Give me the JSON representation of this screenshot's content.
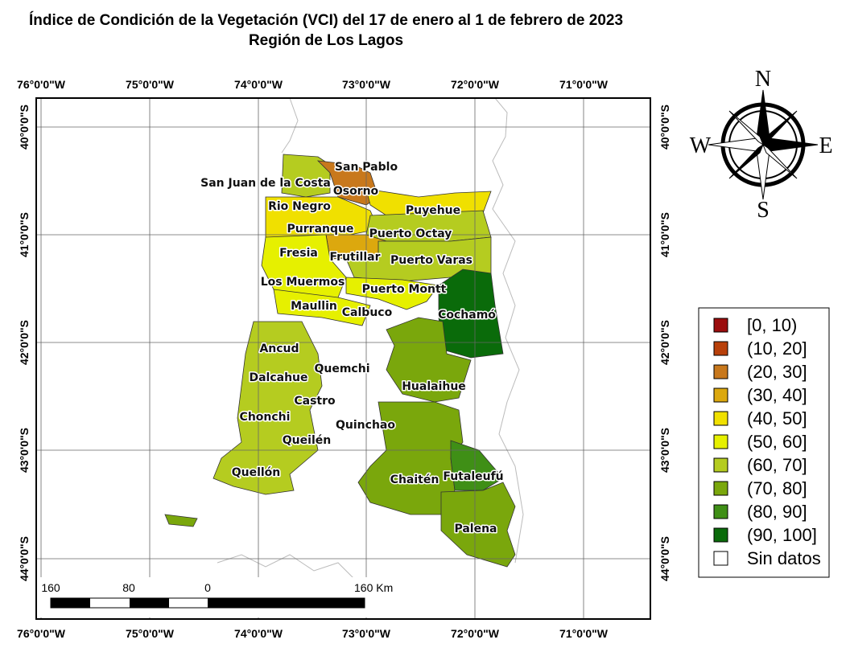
{
  "title": "Índice de Condición de la Vegetación (VCI) del 17 de enero al 1 de febrero de 2023",
  "subtitle": "Región de Los Lagos",
  "graticule": {
    "longitudes": [
      "76°0'0\"W",
      "75°0'0\"W",
      "74°0'0\"W",
      "73°0'0\"W",
      "72°0'0\"W",
      "71°0'0\"W"
    ],
    "latitudes": [
      "40°0'0\"S",
      "41°0'0\"S",
      "42°0'0\"S",
      "43°0'0\"S",
      "44°0'0\"S"
    ]
  },
  "communes": [
    "San Pablo",
    "San Juan de la Costa",
    "Osorno",
    "Rio Negro",
    "Puyehue",
    "Purranque",
    "Puerto Octay",
    "Fresia",
    "Frutillar",
    "Puerto Varas",
    "Los Muermos",
    "Puerto Montt",
    "Maullin",
    "Calbuco",
    "Cochamó",
    "Ancud",
    "Quemchi",
    "Dalcahue",
    "Hualaihue",
    "Castro",
    "Chonchi",
    "Quinchao",
    "Queilén",
    "Quellón",
    "Chaitén",
    "Futaleufú",
    "Palena"
  ],
  "legend": {
    "entries": [
      {
        "label": "[0, 10)",
        "color": "#9b0d0d"
      },
      {
        "label": "(10, 20]",
        "color": "#b8400a"
      },
      {
        "label": "(20, 30]",
        "color": "#c8781c"
      },
      {
        "label": "(30, 40]",
        "color": "#dca80e"
      },
      {
        "label": "(40, 50]",
        "color": "#f0e000"
      },
      {
        "label": "(50, 60]",
        "color": "#e6f000"
      },
      {
        "label": "(60, 70]",
        "color": "#b5cc20"
      },
      {
        "label": "(70, 80]",
        "color": "#7aa70c"
      },
      {
        "label": "(80, 90]",
        "color": "#3f8f16"
      },
      {
        "label": "(90, 100]",
        "color": "#0a6b0a"
      },
      {
        "label": "Sin datos",
        "color": "#ffffff"
      }
    ]
  },
  "scale_bar": {
    "labels": [
      "160",
      "80",
      "0",
      "160 Km"
    ]
  },
  "compass": {
    "north": "N",
    "east": "E",
    "south": "S",
    "west": "W"
  }
}
